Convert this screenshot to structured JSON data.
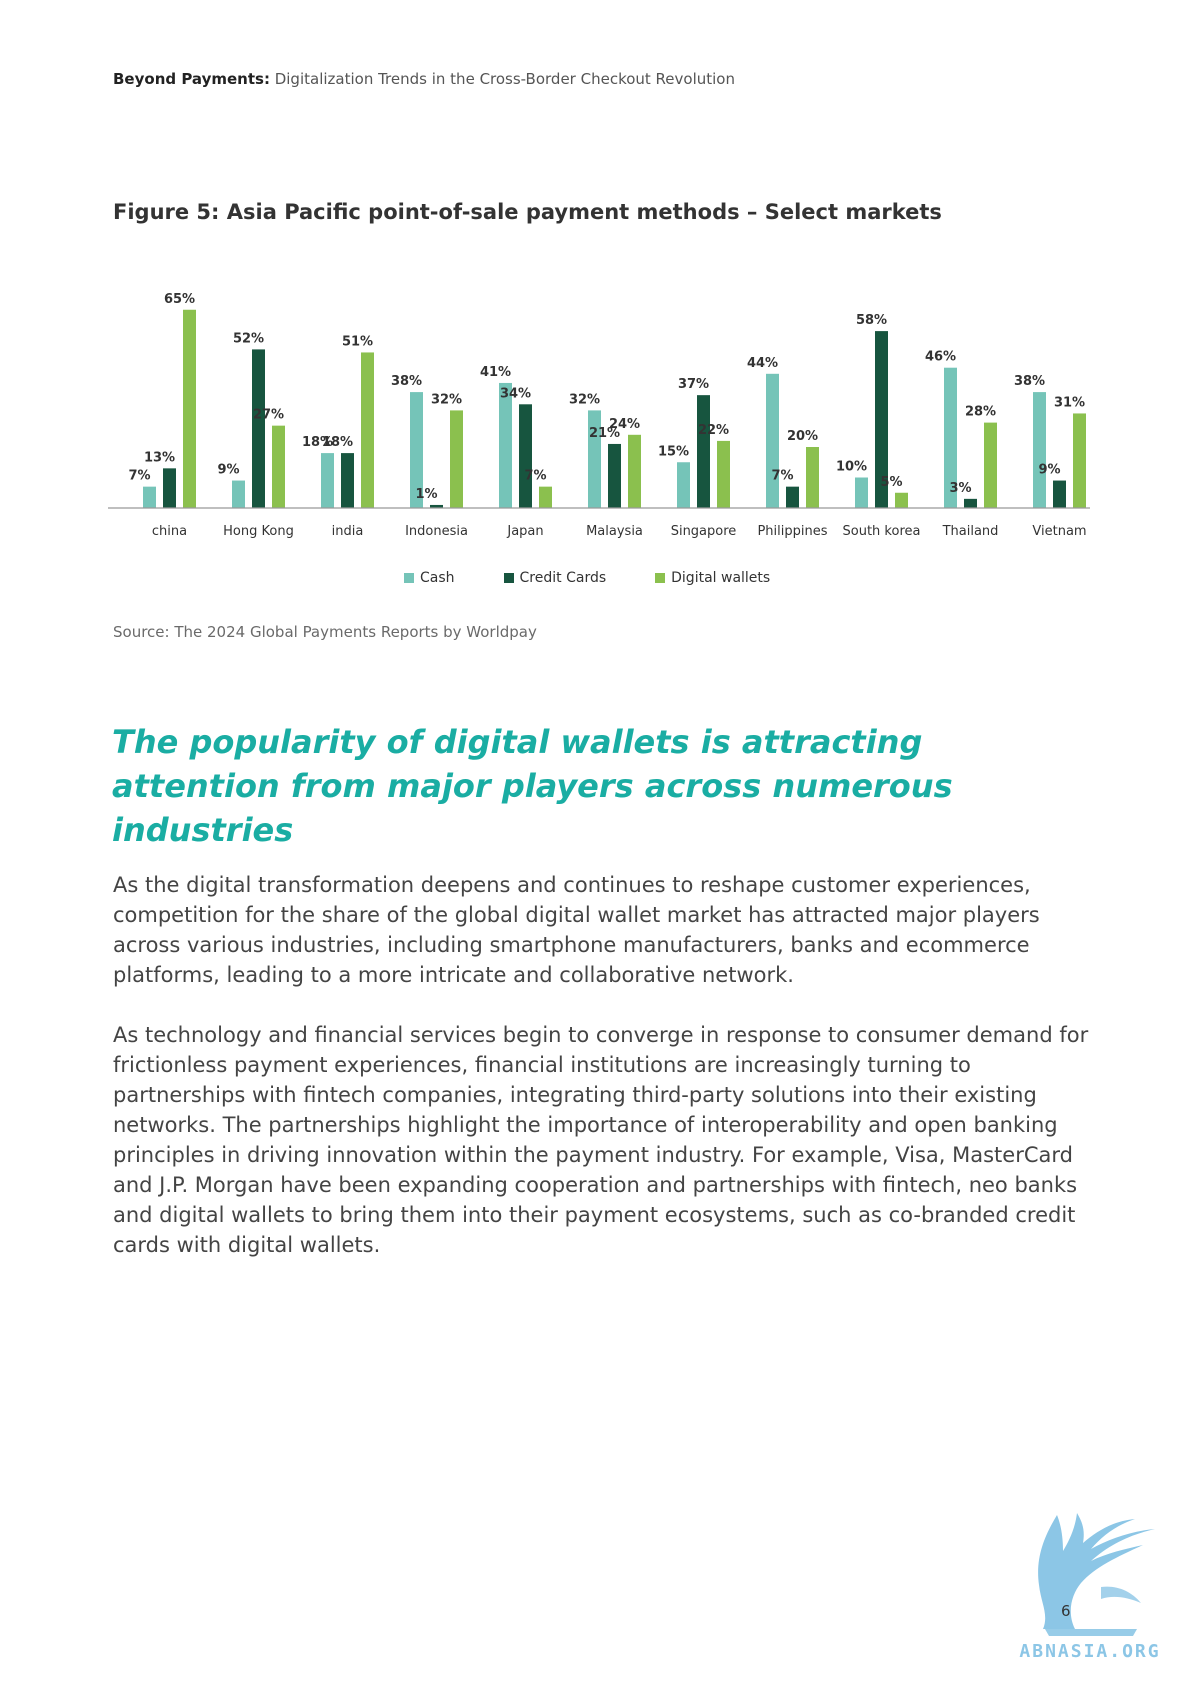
{
  "header": {
    "bold": "Beyond Payments:",
    "rest": "Digitalization Trends in the Cross-Border Checkout Revolution"
  },
  "figure_title": "Figure 5: Asia Pacific point-of-sale payment methods – Select markets",
  "colors": {
    "cash": "#75c4b8",
    "credit_cards": "#17553f",
    "digital_wallets": "#8bc04e",
    "headline": "#1aada3"
  },
  "chart_data": {
    "type": "bar",
    "title": "Figure 5: Asia Pacific point-of-sale payment methods – Select markets",
    "categories": [
      "china",
      "Hong Kong",
      "india",
      "Indonesia",
      "Japan",
      "Malaysia",
      "Singapore",
      "Philippines",
      "South korea",
      "Thailand",
      "Vietnam"
    ],
    "series": [
      {
        "name": "Cash",
        "color": "#75c4b8",
        "values": [
          7,
          9,
          18,
          38,
          41,
          32,
          15,
          44,
          10,
          46,
          38
        ]
      },
      {
        "name": "Credit Cards",
        "color": "#17553f",
        "values": [
          13,
          52,
          18,
          1,
          34,
          21,
          37,
          7,
          58,
          3,
          9
        ]
      },
      {
        "name": "Digital wallets",
        "color": "#8bc04e",
        "values": [
          65,
          27,
          51,
          32,
          7,
          24,
          22,
          20,
          5,
          28,
          31
        ]
      }
    ],
    "value_format": "percent",
    "ylim": [
      0,
      70
    ],
    "grid": false,
    "legend_position": "bottom"
  },
  "source": "Source: The 2024 Global Payments Reports by Worldpay",
  "headline": "The popularity of digital wallets is attracting attention from major players across numerous industries",
  "paragraphs": [
    "As the digital transformation deepens and continues to reshape customer experiences, competition for the share of the global digital wallet market has attracted major players across various industries, including smartphone manufacturers, banks and ecommerce platforms, leading to a more intricate and collaborative network.",
    "As technology and financial services begin to converge in response to consumer demand for frictionless payment experiences, financial institutions are increasingly turning to partnerships with fintech companies, integrating third-party solutions into their existing networks. The partnerships highlight the importance of interoperability and open banking principles in driving innovation within the payment industry. For example, Visa, MasterCard and J.P. Morgan have been expanding cooperation and partnerships with fintech, neo banks and digital wallets to bring them into their payment ecosystems, such as co-branded credit cards with digital wallets."
  ],
  "page_number": "6",
  "watermark_text": "ABNASIA.ORG"
}
